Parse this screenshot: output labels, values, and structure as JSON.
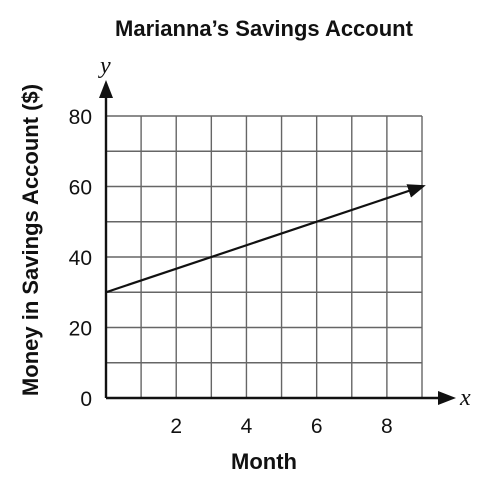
{
  "chart_data": {
    "type": "line",
    "title": "Marianna’s Savings Account",
    "xlabel": "Month",
    "ylabel": "Money in Savings Account ($)",
    "x_axis_letter": "x",
    "y_axis_letter": "y",
    "xlim": [
      0,
      9
    ],
    "ylim": [
      0,
      80
    ],
    "x_ticks": [
      2,
      4,
      6,
      8
    ],
    "y_ticks": [
      0,
      20,
      40,
      60,
      80
    ],
    "grid": true,
    "series": [
      {
        "x": [
          0,
          9
        ],
        "y": [
          30,
          60
        ],
        "arrow_end": true
      }
    ]
  }
}
